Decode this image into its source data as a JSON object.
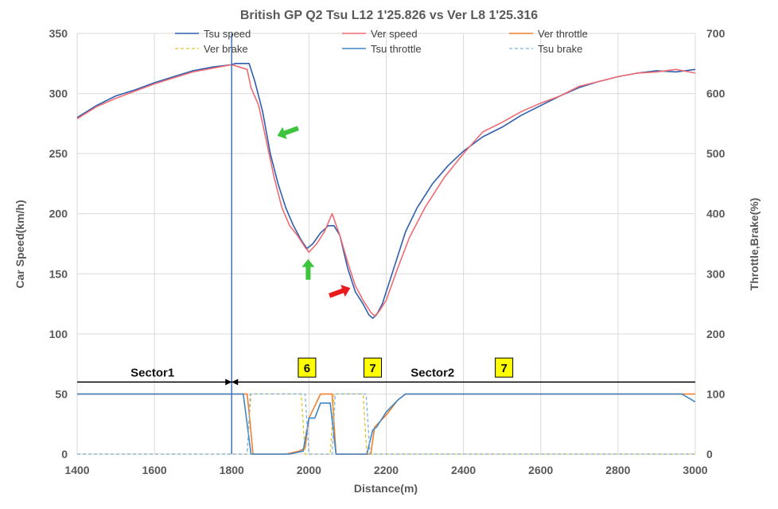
{
  "chart_data": {
    "type": "line",
    "title": "British GP Q2 Tsu L12 1'25.826 vs Ver L8 1'25.316",
    "xlabel": "Distance(m)",
    "ylabel": "Car Speed(km/h)",
    "y2label": "Throttle,Brake(%)",
    "xlim": [
      1400,
      3000
    ],
    "ylim": [
      0,
      350
    ],
    "y2lim": [
      0,
      700
    ],
    "xticks": [
      "1400",
      "1600",
      "1800",
      "2000",
      "2200",
      "2400",
      "2600",
      "2800",
      "3000"
    ],
    "yticks": [
      "0",
      "50",
      "100",
      "150",
      "200",
      "250",
      "300",
      "350"
    ],
    "y2ticks": [
      "0",
      "100",
      "200",
      "300",
      "400",
      "500",
      "600",
      "700"
    ],
    "grid": true,
    "legend_position": "top",
    "series": [
      {
        "name": "Tsu speed",
        "axis": "left",
        "color": "#2e5fae",
        "dash": "solid",
        "width": 1.6,
        "x": [
          1400,
          1450,
          1500,
          1550,
          1600,
          1650,
          1700,
          1750,
          1800,
          1810,
          1830,
          1845,
          1860,
          1880,
          1900,
          1920,
          1940,
          1960,
          1980,
          1995,
          2010,
          2030,
          2050,
          2065,
          2080,
          2100,
          2120,
          2140,
          2155,
          2165,
          2175,
          2190,
          2210,
          2230,
          2250,
          2280,
          2320,
          2360,
          2400,
          2450,
          2500,
          2550,
          2600,
          2650,
          2700,
          2750,
          2800,
          2850,
          2900,
          2950,
          3000
        ],
        "values": [
          280,
          290,
          298,
          303,
          309,
          314,
          319,
          322,
          324,
          325,
          325,
          325,
          310,
          285,
          250,
          225,
          205,
          190,
          178,
          171,
          175,
          184,
          190,
          190,
          182,
          155,
          135,
          125,
          116,
          113,
          116,
          125,
          145,
          165,
          185,
          205,
          225,
          240,
          252,
          264,
          272,
          282,
          290,
          298,
          305,
          310,
          314,
          317,
          319,
          318,
          320
        ]
      },
      {
        "name": "Ver speed",
        "axis": "left",
        "color": "#ee6b74",
        "dash": "solid",
        "width": 1.6,
        "x": [
          1400,
          1450,
          1500,
          1550,
          1600,
          1650,
          1700,
          1750,
          1800,
          1820,
          1840,
          1850,
          1870,
          1890,
          1910,
          1930,
          1950,
          1970,
          1990,
          2000,
          2020,
          2040,
          2060,
          2080,
          2100,
          2120,
          2140,
          2160,
          2170,
          2180,
          2200,
          2230,
          2260,
          2300,
          2350,
          2400,
          2450,
          2500,
          2550,
          2600,
          2650,
          2700,
          2750,
          2800,
          2850,
          2900,
          2950,
          3000
        ],
        "values": [
          279,
          289,
          296,
          302,
          308,
          313,
          318,
          321,
          324,
          322,
          320,
          305,
          290,
          260,
          230,
          205,
          190,
          182,
          172,
          168,
          175,
          185,
          200,
          182,
          160,
          140,
          128,
          118,
          115,
          118,
          128,
          155,
          180,
          205,
          230,
          250,
          268,
          276,
          285,
          292,
          298,
          306,
          310,
          314,
          317,
          318,
          320,
          317
        ]
      },
      {
        "name": "Ver throttle",
        "axis": "right",
        "color": "#f07f2f",
        "dash": "solid",
        "width": 1.6,
        "x": [
          1400,
          1840,
          1848,
          1855,
          1940,
          1975,
          1990,
          2000,
          2030,
          2045,
          2060,
          2070,
          2080,
          2150,
          2160,
          2170,
          2200,
          2230,
          2250,
          3000
        ],
        "values": [
          100,
          100,
          50,
          0,
          0,
          5,
          10,
          60,
          100,
          100,
          100,
          0,
          0,
          0,
          0,
          45,
          65,
          90,
          100,
          100
        ]
      },
      {
        "name": "Ver brake",
        "axis": "right",
        "color": "#e6c02c",
        "dash": "dashed",
        "width": 1.3,
        "x": [
          1400,
          1840,
          1850,
          1860,
          1860,
          1975,
          1980,
          1990,
          1990,
          2055,
          2065,
          2075,
          2075,
          2130,
          2140,
          2150,
          2150,
          3000
        ],
        "values": [
          0,
          0,
          100,
          100,
          100,
          100,
          100,
          0,
          0,
          0,
          100,
          100,
          100,
          100,
          100,
          0,
          0,
          0
        ]
      },
      {
        "name": "Tsu throttle",
        "axis": "right",
        "color": "#3f86c6",
        "dash": "solid",
        "width": 1.6,
        "x": [
          1400,
          1830,
          1840,
          1850,
          1950,
          1985,
          2000,
          2015,
          2030,
          2055,
          2070,
          2080,
          2150,
          2165,
          2175,
          2200,
          2230,
          2250,
          2950,
          2965,
          3000
        ],
        "values": [
          100,
          100,
          50,
          0,
          0,
          5,
          60,
          60,
          85,
          85,
          0,
          0,
          0,
          40,
          45,
          70,
          90,
          100,
          100,
          100,
          87
        ]
      },
      {
        "name": "Tsu brake",
        "axis": "right",
        "color": "#7fb2e0",
        "dash": "dashed",
        "width": 1.3,
        "x": [
          1400,
          1840,
          1848,
          1855,
          1985,
          1990,
          2000,
          2060,
          2068,
          2078,
          2140,
          2148,
          2158,
          3000
        ],
        "values": [
          0,
          0,
          100,
          100,
          100,
          100,
          0,
          0,
          100,
          100,
          100,
          100,
          0,
          0
        ]
      }
    ],
    "annotations": {
      "sector1": "Sector1",
      "sector2": "Sector2",
      "sector_line_x": 1800,
      "sector_line_y": 60,
      "turn_labels": [
        {
          "text": "6",
          "x": 1995,
          "y": 72
        },
        {
          "text": "7",
          "x": 2165,
          "y": 72
        },
        {
          "text": "7",
          "x": 2505,
          "y": 72
        }
      ],
      "arrows": [
        {
          "color": "#3cc43c",
          "direction": "left",
          "x": 1945,
          "y": 268
        },
        {
          "color": "#3cc43c",
          "direction": "up",
          "x": 1998,
          "y": 153
        },
        {
          "color": "#e81c1c",
          "direction": "right",
          "x": 2080,
          "y": 135
        }
      ],
      "sector_marker_color": "#4472c4"
    }
  }
}
